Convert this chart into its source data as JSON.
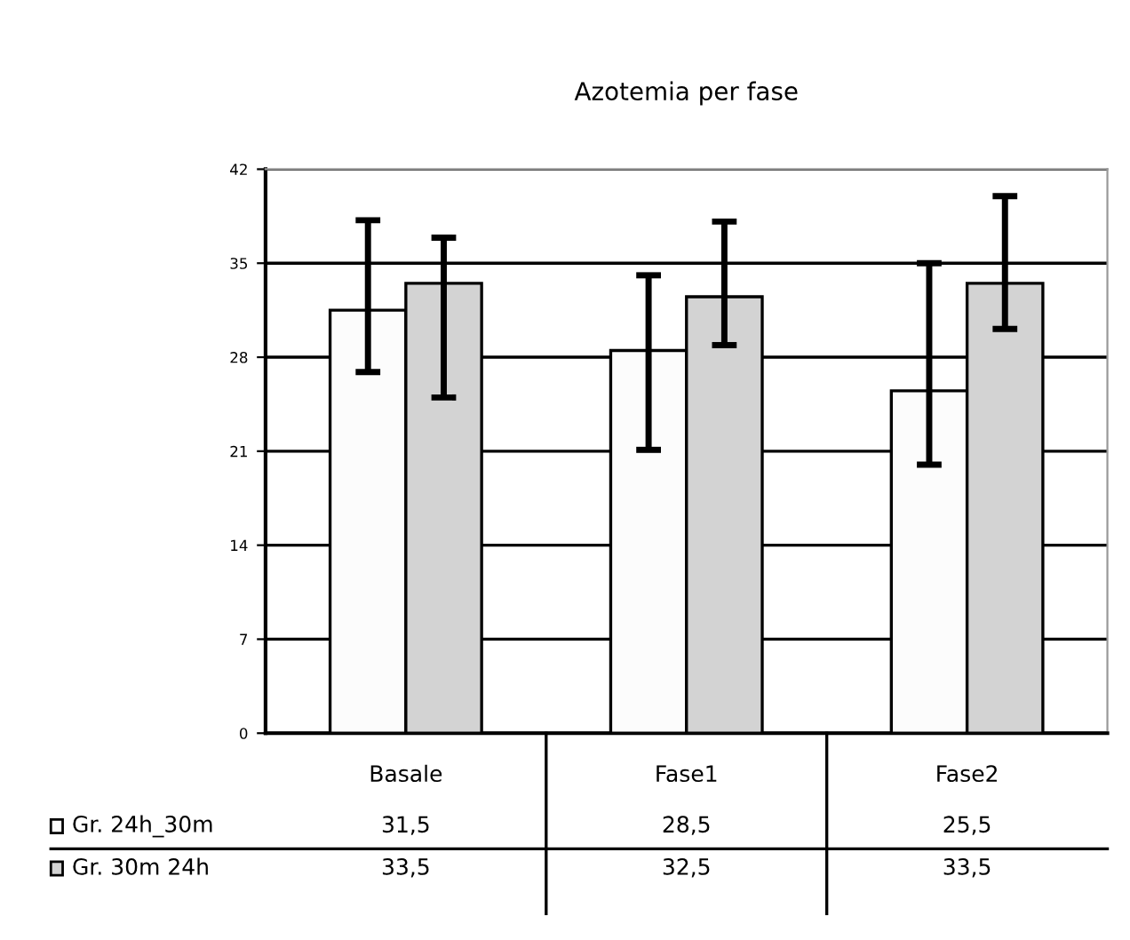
{
  "chart_data": {
    "type": "bar",
    "title": "Azotemia per fase",
    "categories": [
      "Basale",
      "Fase1",
      "Fase2"
    ],
    "series": [
      {
        "name": "Gr. 24h_30m",
        "color": "#fcfcfc",
        "values": [
          31.5,
          28.5,
          25.5
        ],
        "value_labels": [
          "31,5",
          "28,5",
          "25,5"
        ],
        "errors": [
          [
            26.9,
            38.2
          ],
          [
            21.1,
            34.1
          ],
          [
            20.0,
            35.0
          ]
        ]
      },
      {
        "name": "Gr. 30m 24h",
        "color": "#d3d3d3",
        "values": [
          33.5,
          32.5,
          33.5
        ],
        "value_labels": [
          "33,5",
          "32,5",
          "33,5"
        ],
        "errors": [
          [
            25.0,
            36.9
          ],
          [
            28.9,
            38.1
          ],
          [
            30.1,
            40.0
          ]
        ]
      }
    ],
    "ylim": [
      0,
      42
    ],
    "yticks": [
      0,
      7,
      14,
      21,
      28,
      35,
      42
    ],
    "grid": "y",
    "legend": "bottom"
  }
}
